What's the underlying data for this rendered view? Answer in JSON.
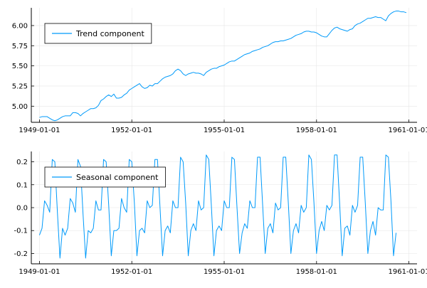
{
  "chart_data": [
    {
      "type": "line",
      "xlim": [
        "1949-01-01",
        "1961-01-01"
      ],
      "ylim": [
        4.8,
        6.22
      ],
      "x_ticks": [
        "1949-01-01",
        "1952-01-01",
        "1955-01-01",
        "1958-01-01",
        "1961-01-01"
      ],
      "y_ticks": [
        5.0,
        5.25,
        5.5,
        5.75,
        6.0
      ],
      "y_tick_labels": [
        "5.00",
        "5.25",
        "5.50",
        "5.75",
        "6.00"
      ],
      "grid": true,
      "legend_position": "top-left",
      "series": [
        {
          "name": "Trend component",
          "color": "#009AFA",
          "x_start": "1949-01-01",
          "frequency": "monthly",
          "values": [
            4.86,
            4.87,
            4.87,
            4.87,
            4.85,
            4.83,
            4.82,
            4.83,
            4.85,
            4.87,
            4.88,
            4.88,
            4.88,
            4.92,
            4.92,
            4.91,
            4.88,
            4.91,
            4.93,
            4.95,
            4.97,
            4.97,
            4.98,
            5.01,
            5.07,
            5.09,
            5.12,
            5.14,
            5.12,
            5.15,
            5.1,
            5.1,
            5.11,
            5.14,
            5.16,
            5.2,
            5.22,
            5.24,
            5.26,
            5.28,
            5.24,
            5.22,
            5.23,
            5.26,
            5.25,
            5.28,
            5.28,
            5.31,
            5.34,
            5.36,
            5.37,
            5.38,
            5.4,
            5.44,
            5.46,
            5.44,
            5.4,
            5.38,
            5.4,
            5.41,
            5.42,
            5.41,
            5.41,
            5.4,
            5.38,
            5.42,
            5.44,
            5.46,
            5.47,
            5.47,
            5.49,
            5.5,
            5.51,
            5.53,
            5.55,
            5.56,
            5.56,
            5.58,
            5.6,
            5.62,
            5.64,
            5.65,
            5.66,
            5.68,
            5.69,
            5.7,
            5.71,
            5.73,
            5.74,
            5.75,
            5.77,
            5.79,
            5.8,
            5.8,
            5.81,
            5.81,
            5.82,
            5.83,
            5.84,
            5.86,
            5.88,
            5.89,
            5.9,
            5.92,
            5.93,
            5.93,
            5.92,
            5.92,
            5.91,
            5.89,
            5.87,
            5.86,
            5.86,
            5.9,
            5.94,
            5.97,
            5.98,
            5.96,
            5.95,
            5.94,
            5.93,
            5.95,
            5.96,
            6.0,
            6.02,
            6.03,
            6.05,
            6.07,
            6.09,
            6.09,
            6.1,
            6.11,
            6.1,
            6.1,
            6.08,
            6.06,
            6.12,
            6.15,
            6.17,
            6.18,
            6.18,
            6.17,
            6.17,
            6.16
          ]
        }
      ]
    },
    {
      "type": "line",
      "xlim": [
        "1949-01-01",
        "1961-01-01"
      ],
      "ylim": [
        -0.245,
        0.245
      ],
      "x_ticks": [
        "1949-01-01",
        "1952-01-01",
        "1955-01-01",
        "1958-01-01",
        "1961-01-01"
      ],
      "y_ticks": [
        -0.2,
        -0.1,
        0.0,
        0.1,
        0.2
      ],
      "y_tick_labels": [
        "-0.2",
        "-0.1",
        "0.0",
        "0.1",
        "0.2"
      ],
      "grid": true,
      "legend_position": "top-left",
      "series": [
        {
          "name": "Seasonal component",
          "color": "#009AFA",
          "x_start": "1949-01-01",
          "frequency": "monthly",
          "values": [
            -0.12,
            -0.09,
            0.03,
            0.01,
            -0.02,
            0.21,
            0.2,
            -0.02,
            -0.22,
            -0.09,
            -0.12,
            -0.09,
            0.04,
            0.02,
            -0.02,
            0.21,
            0.18,
            -0.03,
            -0.22,
            -0.1,
            -0.11,
            -0.09,
            0.03,
            -0.01,
            -0.01,
            0.21,
            0.2,
            0.01,
            -0.21,
            -0.1,
            -0.1,
            -0.09,
            0.04,
            0.0,
            -0.02,
            0.21,
            0.2,
            0.02,
            -0.21,
            -0.1,
            -0.09,
            -0.11,
            0.03,
            0.0,
            0.01,
            0.21,
            0.21,
            0.0,
            -0.21,
            -0.1,
            -0.08,
            -0.11,
            0.03,
            0.0,
            0.0,
            0.22,
            0.2,
            0.02,
            -0.21,
            -0.1,
            -0.07,
            -0.1,
            0.03,
            -0.01,
            0.0,
            0.23,
            0.21,
            0.01,
            -0.21,
            -0.1,
            -0.08,
            -0.1,
            0.03,
            0.0,
            0.0,
            0.22,
            0.21,
            0.0,
            -0.2,
            -0.11,
            -0.07,
            -0.09,
            0.03,
            0.0,
            0.0,
            0.22,
            0.22,
            0.01,
            -0.2,
            -0.09,
            -0.07,
            -0.11,
            0.02,
            -0.01,
            0.0,
            0.22,
            0.22,
            0.02,
            -0.2,
            -0.1,
            -0.07,
            -0.11,
            0.01,
            -0.02,
            0.0,
            0.23,
            0.21,
            0.02,
            -0.2,
            -0.1,
            -0.06,
            -0.1,
            0.01,
            -0.01,
            0.01,
            0.23,
            0.23,
            0.02,
            -0.21,
            -0.09,
            -0.08,
            -0.12,
            0.01,
            -0.02,
            0.01,
            0.22,
            0.22,
            0.02,
            -0.2,
            -0.1,
            -0.06,
            -0.12,
            0.0,
            -0.01,
            -0.01,
            0.23,
            0.22,
            0.03,
            -0.21,
            -0.11
          ]
        }
      ]
    }
  ]
}
